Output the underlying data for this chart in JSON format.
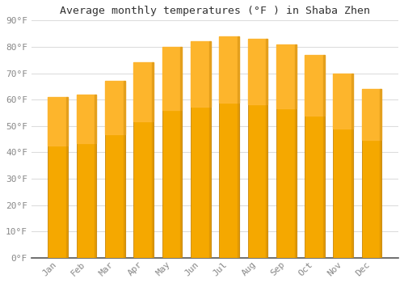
{
  "title": "Average monthly temperatures (°F ) in Shaba Zhen",
  "months": [
    "Jan",
    "Feb",
    "Mar",
    "Apr",
    "May",
    "Jun",
    "Jul",
    "Aug",
    "Sep",
    "Oct",
    "Nov",
    "Dec"
  ],
  "values": [
    61,
    62,
    67,
    74,
    80,
    82,
    84,
    83,
    81,
    77,
    70,
    64
  ],
  "bar_color_top": "#FFB732",
  "bar_color_bottom": "#F5A800",
  "bar_color_edge": "#C8870A",
  "background_color": "#FFFFFF",
  "plot_bg_color": "#FFFFFF",
  "ylim": [
    0,
    90
  ],
  "ytick_step": 10,
  "title_fontsize": 9.5,
  "tick_fontsize": 8,
  "grid_color": "#DDDDDD",
  "label_color": "#888888",
  "spine_color": "#555555"
}
